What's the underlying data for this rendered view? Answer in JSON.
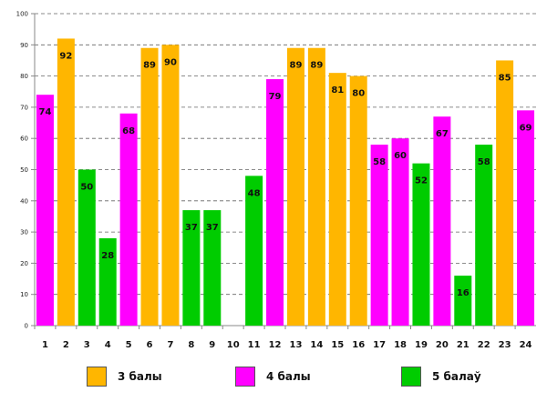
{
  "chart_data": {
    "type": "bar",
    "title": "",
    "xlabel": "",
    "ylabel": "",
    "ylim": [
      0,
      100
    ],
    "yticks": [
      0,
      10,
      20,
      30,
      40,
      50,
      60,
      70,
      80,
      90,
      100
    ],
    "grid": true,
    "categories": [
      "1",
      "2",
      "3",
      "4",
      "5",
      "6",
      "7",
      "8",
      "9",
      "10",
      "11",
      "12",
      "13",
      "14",
      "15",
      "16",
      "17",
      "18",
      "19",
      "20",
      "21",
      "22",
      "23",
      "24"
    ],
    "values": [
      74,
      92,
      50,
      28,
      68,
      89,
      90,
      37,
      37,
      null,
      48,
      79,
      89,
      89,
      81,
      80,
      58,
      60,
      52,
      67,
      16,
      58,
      85,
      69
    ],
    "groups": [
      "4 балы",
      "3 балы",
      "5 балаў",
      "5 балаў",
      "4 балы",
      "3 балы",
      "3 балы",
      "5 балаў",
      "5 балаў",
      null,
      "5 балаў",
      "4 балы",
      "3 балы",
      "3 балы",
      "3 балы",
      "3 балы",
      "4 балы",
      "4 балы",
      "5 балаў",
      "4 балы",
      "5 балаў",
      "5 балаў",
      "3 балы",
      "4 балы"
    ],
    "legend": [
      {
        "name": "3 балы",
        "color": "#FFB600"
      },
      {
        "name": "4 балы",
        "color": "#FF00FF"
      },
      {
        "name": "5 балаў",
        "color": "#00CC00"
      }
    ],
    "legend_position": "bottom"
  }
}
